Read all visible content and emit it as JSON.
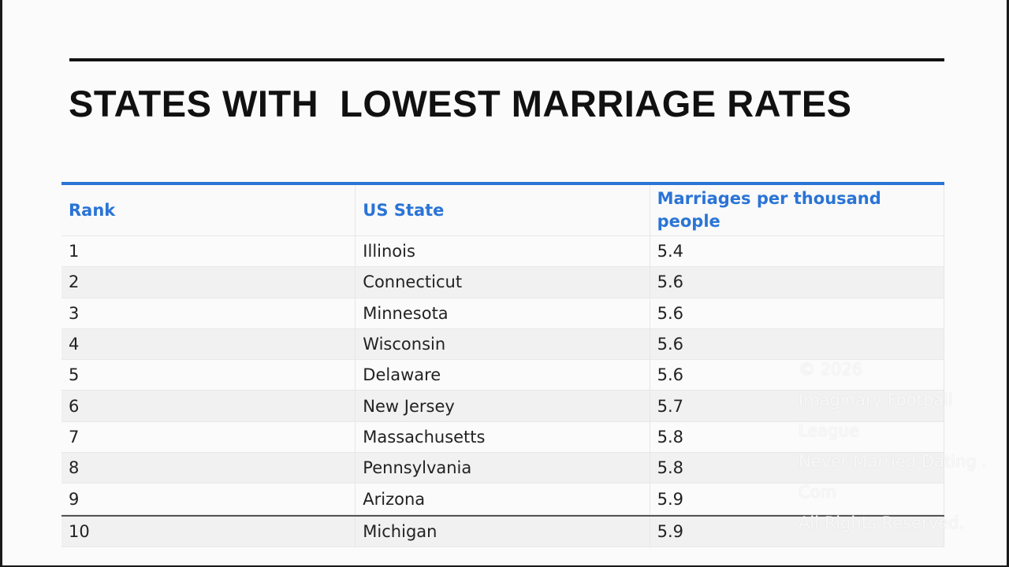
{
  "header": {
    "title": "STATES WITH  LOWEST MARRIAGE RATES"
  },
  "table": {
    "columns": [
      "Rank",
      "US State",
      "Marriages per thousand people"
    ],
    "rows": [
      [
        1,
        "Illinois",
        5.4
      ],
      [
        2,
        "Connecticut",
        5.6
      ],
      [
        3,
        "Minnesota",
        5.6
      ],
      [
        4,
        "Wisconsin",
        5.6
      ],
      [
        5,
        "Delaware",
        5.6
      ],
      [
        6,
        "New Jersey",
        5.7
      ],
      [
        7,
        "Massachusetts",
        5.8
      ],
      [
        8,
        "Pennsylvania",
        5.8
      ],
      [
        9,
        "Arizona",
        5.9
      ],
      [
        10,
        "Michigan",
        5.9
      ]
    ]
  },
  "watermark": [
    "© 2026",
    "Imaginary Football League",
    "Never Married Dating . Com",
    "All Rights Reserved."
  ]
}
